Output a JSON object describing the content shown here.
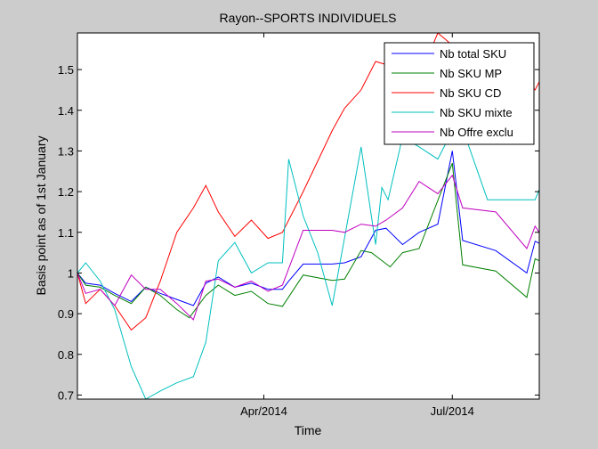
{
  "chart_data": {
    "type": "line",
    "title": "Rayon--SPORTS INDIVIDUELS",
    "xlabel": "Time",
    "ylabel": "Basis point as of 1st January",
    "xlim": [
      "2014-01-01",
      "2014-08-12"
    ],
    "ylim": [
      0.69,
      1.59
    ],
    "x_ticks": [
      {
        "date": "2014-04-01",
        "label": "Apr/2014"
      },
      {
        "date": "2014-07-01",
        "label": "Jul/2014"
      }
    ],
    "y_ticks": [
      {
        "value": 0.7,
        "label": "0.7"
      },
      {
        "value": 0.8,
        "label": "0.8"
      },
      {
        "value": 0.9,
        "label": "0.9"
      },
      {
        "value": 1.0,
        "label": "1"
      },
      {
        "value": 1.1,
        "label": "1.1"
      },
      {
        "value": 1.2,
        "label": "1.2"
      },
      {
        "value": 1.3,
        "label": "1.3"
      },
      {
        "value": 1.4,
        "label": "1.4"
      },
      {
        "value": 1.5,
        "label": "1.5"
      }
    ],
    "grid": false,
    "legend_position": "top-right",
    "series": [
      {
        "name": "Nb total SKU",
        "color": "#0000ff",
        "points": [
          [
            "2014-01-01",
            1.0
          ],
          [
            "2014-01-05",
            0.975
          ],
          [
            "2014-01-12",
            0.97
          ],
          [
            "2014-01-19",
            0.95
          ],
          [
            "2014-01-27",
            0.93
          ],
          [
            "2014-02-03",
            0.965
          ],
          [
            "2014-02-10",
            0.95
          ],
          [
            "2014-02-18",
            0.935
          ],
          [
            "2014-02-26",
            0.92
          ],
          [
            "2014-03-04",
            0.975
          ],
          [
            "2014-03-10",
            0.99
          ],
          [
            "2014-03-18",
            0.965
          ],
          [
            "2014-03-26",
            0.975
          ],
          [
            "2014-04-03",
            0.96
          ],
          [
            "2014-04-10",
            0.96
          ],
          [
            "2014-04-13",
            0.98
          ],
          [
            "2014-04-20",
            1.022
          ],
          [
            "2014-05-04",
            1.022
          ],
          [
            "2014-05-10",
            1.025
          ],
          [
            "2014-05-18",
            1.04
          ],
          [
            "2014-05-25",
            1.105
          ],
          [
            "2014-05-30",
            1.11
          ],
          [
            "2014-06-07",
            1.07
          ],
          [
            "2014-06-15",
            1.1
          ],
          [
            "2014-06-24",
            1.12
          ],
          [
            "2014-07-01",
            1.3
          ],
          [
            "2014-07-06",
            1.08
          ],
          [
            "2014-07-22",
            1.055
          ],
          [
            "2014-08-06",
            1.0
          ],
          [
            "2014-08-10",
            1.078
          ],
          [
            "2014-08-12",
            1.073
          ]
        ]
      },
      {
        "name": "Nb SKU MP",
        "color": "#008000",
        "points": [
          [
            "2014-01-01",
            1.0
          ],
          [
            "2014-01-05",
            0.97
          ],
          [
            "2014-01-12",
            0.965
          ],
          [
            "2014-01-19",
            0.945
          ],
          [
            "2014-01-27",
            0.925
          ],
          [
            "2014-02-03",
            0.965
          ],
          [
            "2014-02-10",
            0.945
          ],
          [
            "2014-02-18",
            0.91
          ],
          [
            "2014-02-24",
            0.89
          ],
          [
            "2014-03-04",
            0.945
          ],
          [
            "2014-03-10",
            0.97
          ],
          [
            "2014-03-18",
            0.945
          ],
          [
            "2014-03-26",
            0.955
          ],
          [
            "2014-04-03",
            0.925
          ],
          [
            "2014-04-10",
            0.918
          ],
          [
            "2014-04-20",
            0.995
          ],
          [
            "2014-05-04",
            0.982
          ],
          [
            "2014-05-10",
            0.985
          ],
          [
            "2014-05-18",
            1.055
          ],
          [
            "2014-05-23",
            1.05
          ],
          [
            "2014-06-01",
            1.015
          ],
          [
            "2014-06-07",
            1.05
          ],
          [
            "2014-06-15",
            1.06
          ],
          [
            "2014-07-01",
            1.27
          ],
          [
            "2014-07-06",
            1.02
          ],
          [
            "2014-07-22",
            1.005
          ],
          [
            "2014-08-06",
            0.94
          ],
          [
            "2014-08-10",
            1.035
          ],
          [
            "2014-08-12",
            1.03
          ]
        ]
      },
      {
        "name": "Nb SKU CD",
        "color": "#ff0000",
        "points": [
          [
            "2014-01-01",
            1.0
          ],
          [
            "2014-01-05",
            0.925
          ],
          [
            "2014-01-12",
            0.96
          ],
          [
            "2014-01-19",
            0.92
          ],
          [
            "2014-01-27",
            0.86
          ],
          [
            "2014-02-03",
            0.89
          ],
          [
            "2014-02-10",
            0.98
          ],
          [
            "2014-02-18",
            1.1
          ],
          [
            "2014-02-26",
            1.16
          ],
          [
            "2014-03-04",
            1.215
          ],
          [
            "2014-03-10",
            1.15
          ],
          [
            "2014-03-18",
            1.09
          ],
          [
            "2014-03-26",
            1.13
          ],
          [
            "2014-04-03",
            1.085
          ],
          [
            "2014-04-10",
            1.1
          ],
          [
            "2014-04-20",
            1.2
          ],
          [
            "2014-05-04",
            1.35
          ],
          [
            "2014-05-10",
            1.405
          ],
          [
            "2014-05-18",
            1.45
          ],
          [
            "2014-05-25",
            1.52
          ],
          [
            "2014-06-07",
            1.5
          ],
          [
            "2014-06-15",
            1.48
          ],
          [
            "2014-06-24",
            1.59
          ],
          [
            "2014-07-01",
            1.56
          ],
          [
            "2014-07-10",
            1.56
          ],
          [
            "2014-07-22",
            1.545
          ],
          [
            "2014-08-10",
            1.45
          ],
          [
            "2014-08-12",
            1.47
          ]
        ]
      },
      {
        "name": "Nb SKU mixte",
        "color": "#00bfbf",
        "points": [
          [
            "2014-01-01",
            1.0
          ],
          [
            "2014-01-05",
            1.025
          ],
          [
            "2014-01-12",
            0.98
          ],
          [
            "2014-01-19",
            0.91
          ],
          [
            "2014-01-27",
            0.77
          ],
          [
            "2014-02-03",
            0.69
          ],
          [
            "2014-02-10",
            0.71
          ],
          [
            "2014-02-18",
            0.73
          ],
          [
            "2014-02-26",
            0.745
          ],
          [
            "2014-03-04",
            0.83
          ],
          [
            "2014-03-10",
            1.03
          ],
          [
            "2014-03-18",
            1.075
          ],
          [
            "2014-03-26",
            1.0
          ],
          [
            "2014-04-03",
            1.025
          ],
          [
            "2014-04-10",
            1.025
          ],
          [
            "2014-04-13",
            1.28
          ],
          [
            "2014-04-20",
            1.14
          ],
          [
            "2014-04-27",
            1.05
          ],
          [
            "2014-05-04",
            0.92
          ],
          [
            "2014-05-18",
            1.31
          ],
          [
            "2014-05-25",
            1.07
          ],
          [
            "2014-05-28",
            1.21
          ],
          [
            "2014-05-31",
            1.18
          ],
          [
            "2014-06-07",
            1.335
          ],
          [
            "2014-06-15",
            1.31
          ],
          [
            "2014-06-24",
            1.28
          ],
          [
            "2014-07-01",
            1.35
          ],
          [
            "2014-07-06",
            1.355
          ],
          [
            "2014-07-18",
            1.18
          ],
          [
            "2014-08-10",
            1.18
          ],
          [
            "2014-08-12",
            1.205
          ]
        ]
      },
      {
        "name": "Nb Offre exclu",
        "color": "#bf00bf",
        "points": [
          [
            "2014-01-01",
            1.0
          ],
          [
            "2014-01-05",
            0.95
          ],
          [
            "2014-01-12",
            0.96
          ],
          [
            "2014-01-19",
            0.92
          ],
          [
            "2014-01-27",
            0.995
          ],
          [
            "2014-02-03",
            0.96
          ],
          [
            "2014-02-10",
            0.96
          ],
          [
            "2014-02-18",
            0.925
          ],
          [
            "2014-02-26",
            0.885
          ],
          [
            "2014-03-04",
            0.98
          ],
          [
            "2014-03-10",
            0.985
          ],
          [
            "2014-03-18",
            0.965
          ],
          [
            "2014-03-26",
            0.98
          ],
          [
            "2014-04-03",
            0.955
          ],
          [
            "2014-04-10",
            0.97
          ],
          [
            "2014-04-20",
            1.105
          ],
          [
            "2014-05-04",
            1.105
          ],
          [
            "2014-05-10",
            1.1
          ],
          [
            "2014-05-18",
            1.12
          ],
          [
            "2014-05-25",
            1.115
          ],
          [
            "2014-05-30",
            1.13
          ],
          [
            "2014-06-07",
            1.16
          ],
          [
            "2014-06-15",
            1.225
          ],
          [
            "2014-06-24",
            1.195
          ],
          [
            "2014-07-01",
            1.24
          ],
          [
            "2014-07-06",
            1.16
          ],
          [
            "2014-07-22",
            1.15
          ],
          [
            "2014-08-06",
            1.06
          ],
          [
            "2014-08-10",
            1.115
          ],
          [
            "2014-08-12",
            1.1
          ]
        ]
      }
    ]
  }
}
